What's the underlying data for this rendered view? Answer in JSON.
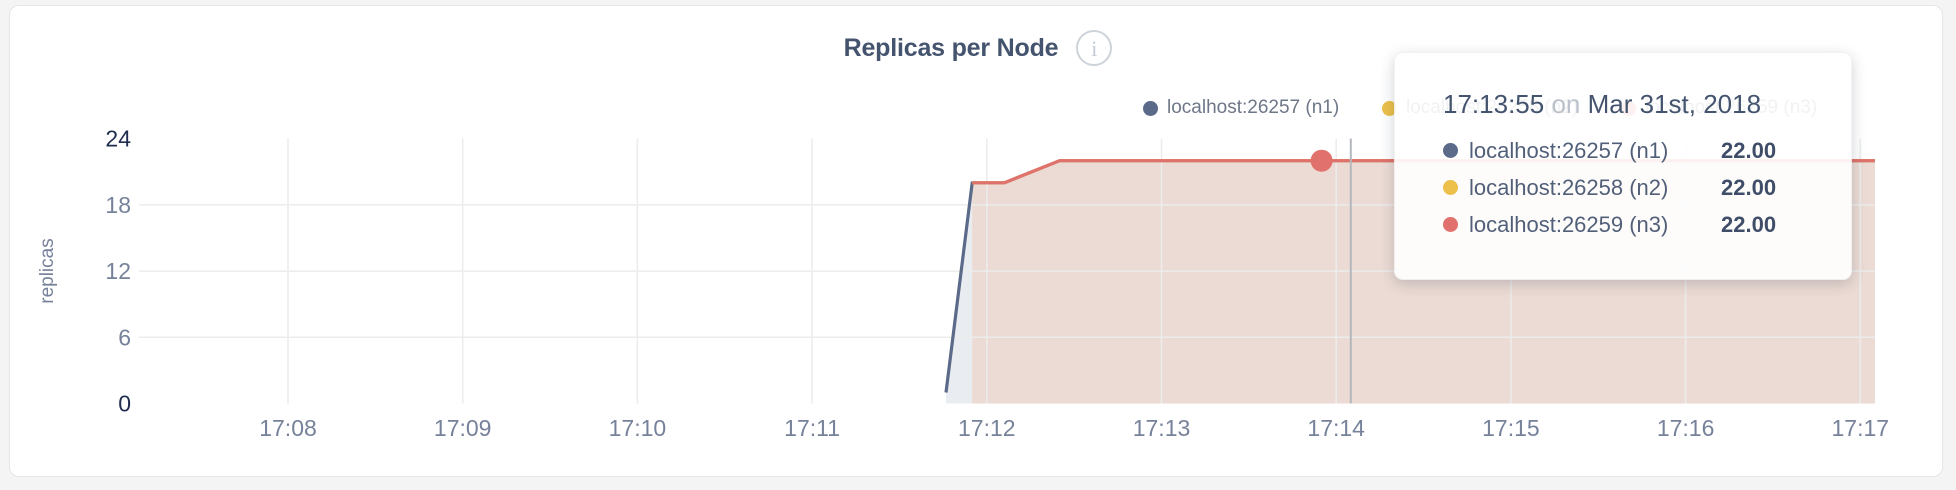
{
  "card": {
    "title": "Replicas per Node",
    "info_icon_glyph": "i"
  },
  "legend": {
    "items": [
      {
        "label": "localhost:26257 (n1)",
        "color": "#5a6a88"
      },
      {
        "label": "localhost:26258 (n2)",
        "color": "#ecc04a"
      },
      {
        "label": "localhost:26259 (n3)",
        "color": "#e1716c"
      }
    ]
  },
  "tooltip": {
    "time": "17:13:55",
    "on_word": "on",
    "date": "Mar 31st, 2018",
    "rows": [
      {
        "label": "localhost:26257 (n1)",
        "value": "22.00",
        "color": "#5a6a88"
      },
      {
        "label": "localhost:26258 (n2)",
        "value": "22.00",
        "color": "#ecc04a"
      },
      {
        "label": "localhost:26259 (n3)",
        "value": "22.00",
        "color": "#e1716c"
      }
    ]
  },
  "chart_data": {
    "type": "area",
    "title": "Replicas per Node",
    "ylabel": "replicas",
    "xlabel": "",
    "ylim": [
      0,
      24
    ],
    "y_ticks": [
      0,
      6,
      12,
      18,
      24
    ],
    "y_strong_ticks": [
      0,
      24
    ],
    "y_gridline_values": [
      6,
      12,
      18
    ],
    "x_ticks": [
      "17:08",
      "17:09",
      "17:10",
      "17:11",
      "17:12",
      "17:13",
      "17:14",
      "17:15",
      "17:16",
      "17:17"
    ],
    "grid": true,
    "legend_position": "top-right",
    "axis_text_color": "#76819a",
    "axis_text_color_strong": "#1f2c4d",
    "gridline_color": "#ececec",
    "series": [
      {
        "name": "localhost:26257 (n1)",
        "color": "#5a6a88",
        "fill": "#e9ecf0",
        "points": [
          [
            "17:11:46",
            1
          ],
          [
            "17:11:55",
            20
          ],
          [
            "17:12:06",
            20
          ],
          [
            "17:12:25",
            22
          ],
          [
            "17:17:05",
            22
          ]
        ]
      },
      {
        "name": "localhost:26258 (n2)",
        "color": "#ecc04a",
        "fill": "#f7ecd4",
        "points": [
          [
            "17:11:55",
            20
          ],
          [
            "17:12:06",
            20
          ],
          [
            "17:12:25",
            22
          ],
          [
            "17:17:05",
            22
          ]
        ]
      },
      {
        "name": "localhost:26259 (n3)",
        "color": "#e1716c",
        "fill": "#ecdbd4",
        "points": [
          [
            "17:11:55",
            20
          ],
          [
            "17:12:06",
            20
          ],
          [
            "17:12:25",
            22
          ],
          [
            "17:17:05",
            22
          ]
        ]
      }
    ],
    "hover": {
      "time": "17:13:55",
      "value": 22,
      "series": "localhost:26259 (n3)",
      "crosshair_time": "17:14:05",
      "dot_color": "#e1716c",
      "crosshair_color": "#b4b8bd"
    }
  }
}
